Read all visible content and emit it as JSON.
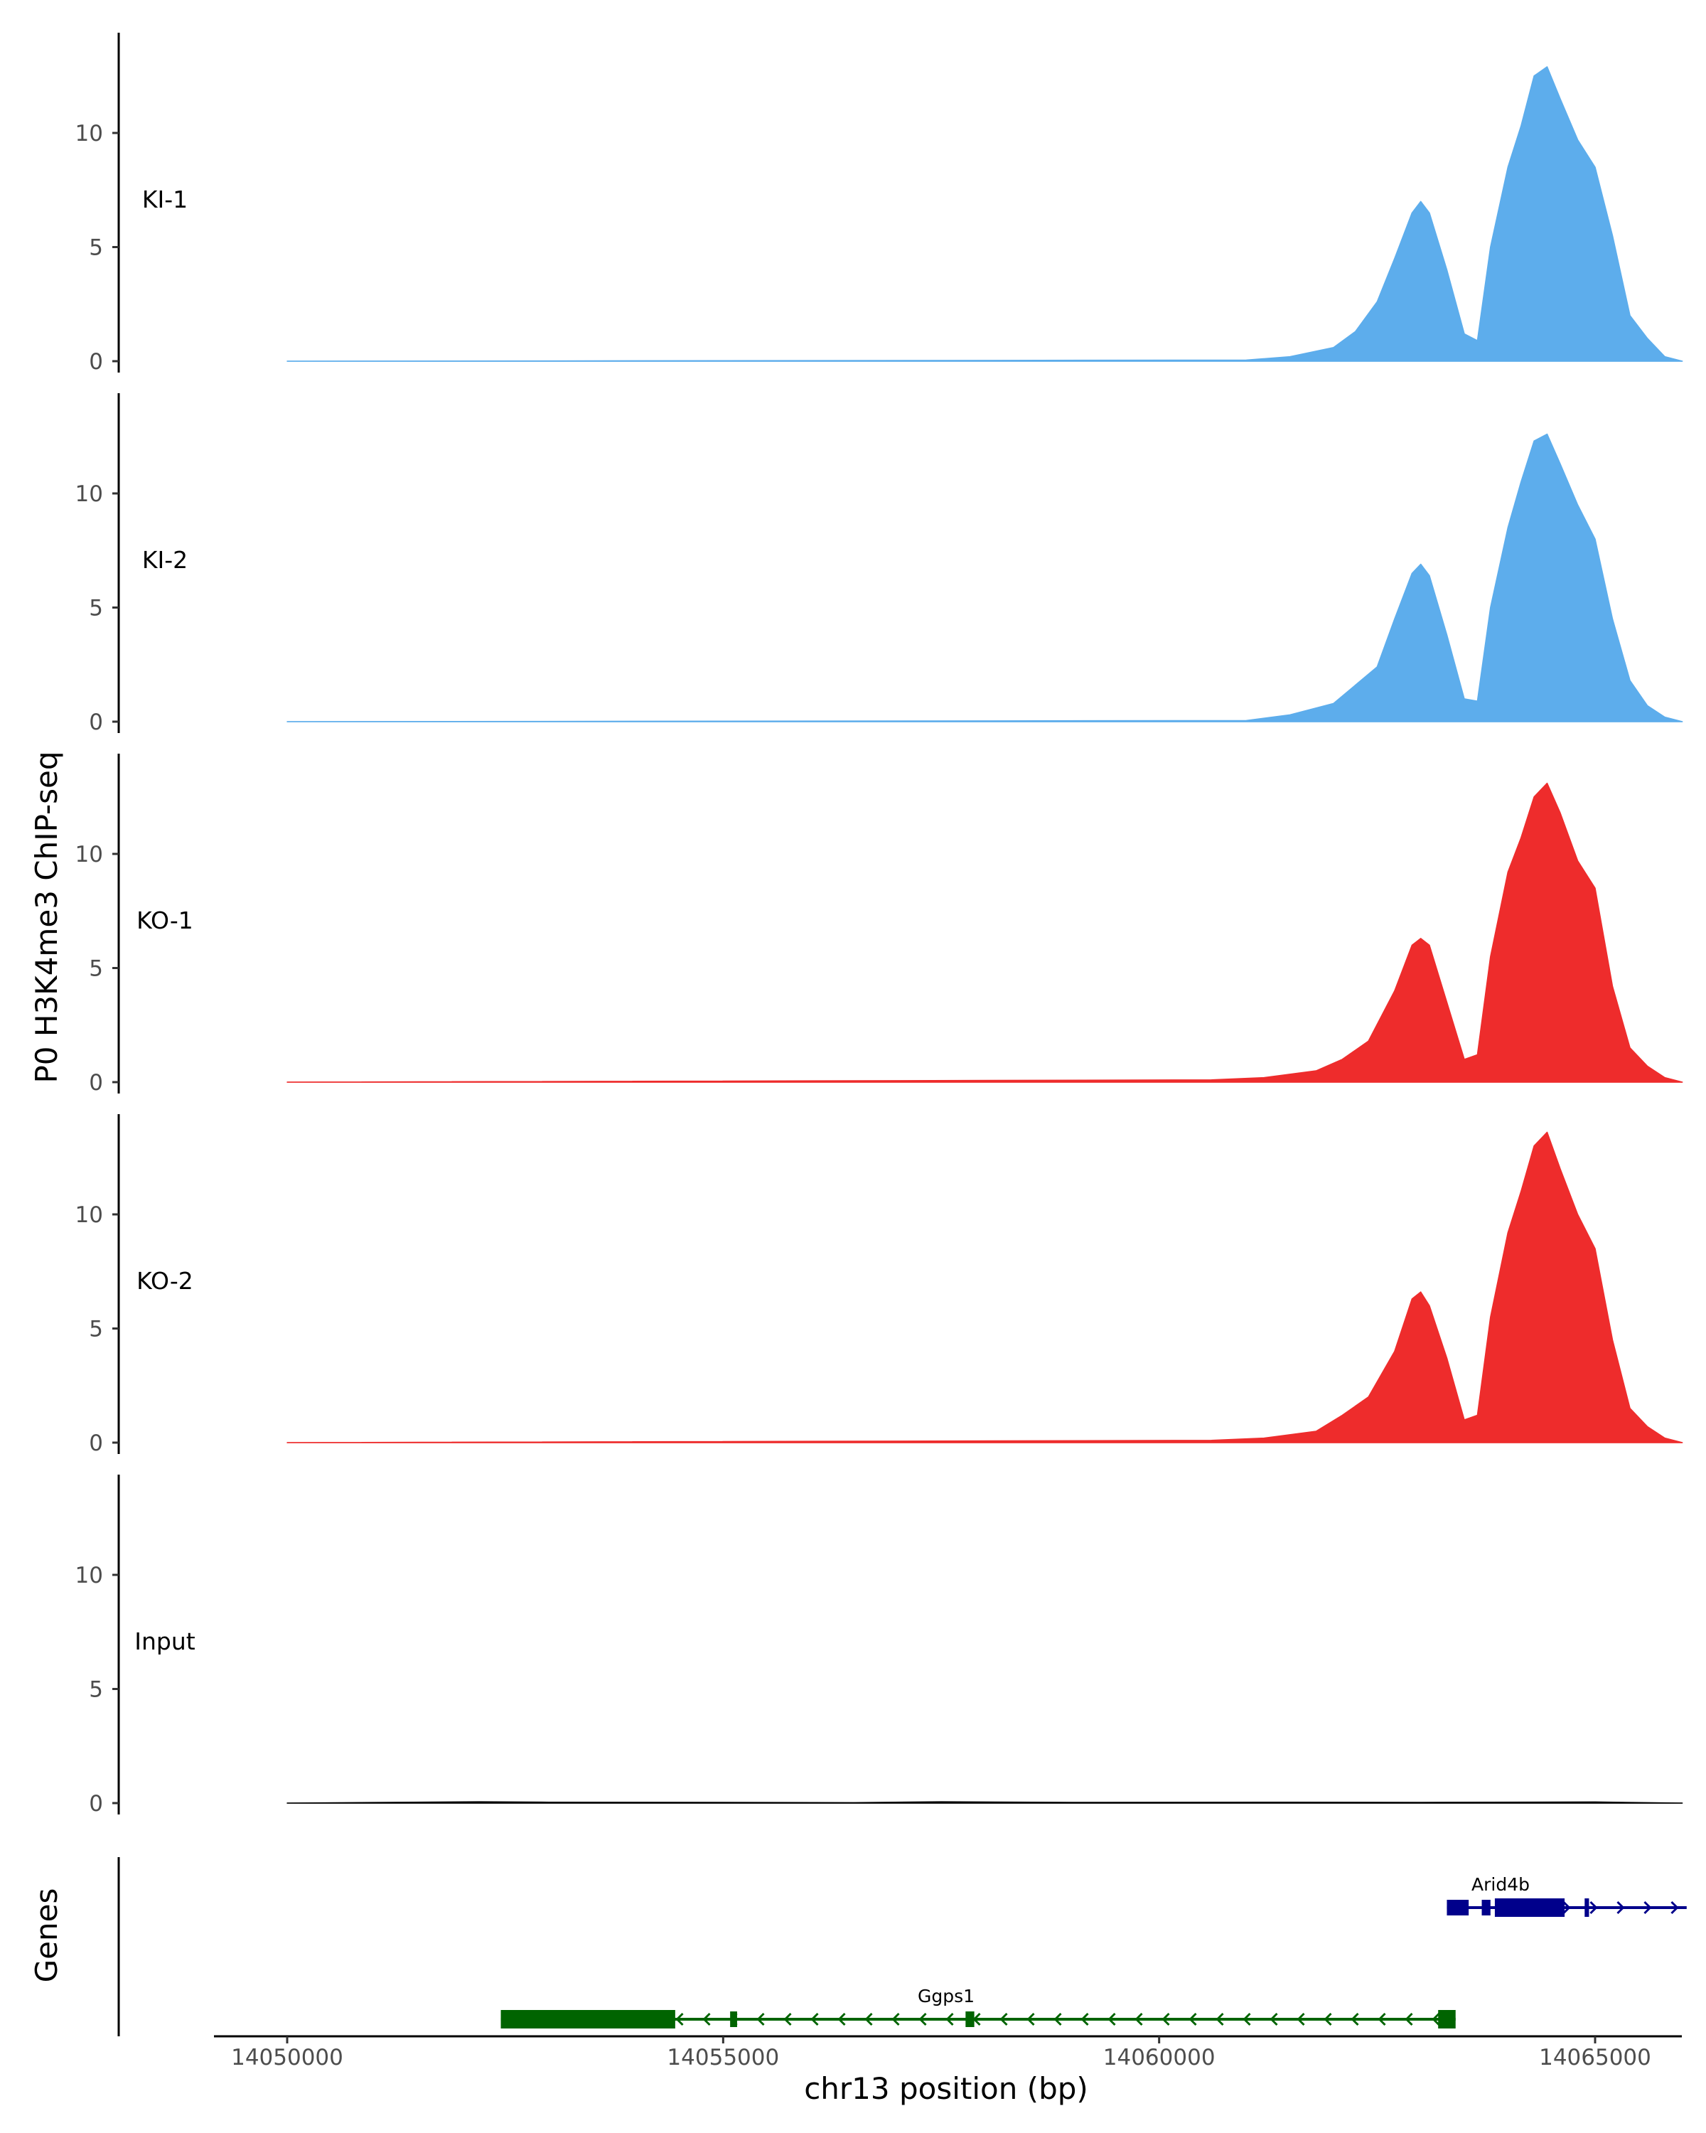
{
  "chart_data": {
    "type": "area",
    "title": "",
    "ylabel": "P0 H3K4me3 ChIP-seq",
    "xlabel": "chr13 position (bp)",
    "xlim": [
      14049000,
      14066800
    ],
    "ylim": [
      0,
      14.2
    ],
    "x_ticks": [
      14050000,
      14055000,
      14060000,
      14065000
    ],
    "x_tick_labels": [
      "14050000",
      "14055000",
      "14060000",
      "14065000"
    ],
    "y_ticks": [
      0,
      5,
      10
    ],
    "y_tick_labels": [
      "0",
      "5",
      "10"
    ],
    "tracks": [
      {
        "name": "KI-1",
        "color": "#5DADEC",
        "x": [
          14050000,
          14061000,
          14061500,
          14062000,
          14062250,
          14062500,
          14062700,
          14062900,
          14063000,
          14063100,
          14063300,
          14063500,
          14063650,
          14063800,
          14064000,
          14064150,
          14064300,
          14064450,
          14064600,
          14064800,
          14065000,
          14065200,
          14065400,
          14065600,
          14065800,
          14066000
        ],
        "values": [
          0,
          0.05,
          0.2,
          0.6,
          1.3,
          2.6,
          4.5,
          6.5,
          7.0,
          6.5,
          4.0,
          1.2,
          0.9,
          5.0,
          8.5,
          10.3,
          12.5,
          12.9,
          11.5,
          9.7,
          8.5,
          5.5,
          2.0,
          1.0,
          0.2,
          0
        ]
      },
      {
        "name": "KI-2",
        "color": "#5DADEC",
        "x": [
          14050000,
          14061000,
          14061500,
          14062000,
          14062250,
          14062500,
          14062700,
          14062900,
          14063000,
          14063100,
          14063300,
          14063500,
          14063650,
          14063800,
          14064000,
          14064150,
          14064300,
          14064450,
          14064600,
          14064800,
          14065000,
          14065200,
          14065400,
          14065600,
          14065800,
          14066000
        ],
        "values": [
          0,
          0.05,
          0.3,
          0.8,
          1.6,
          2.4,
          4.5,
          6.5,
          6.9,
          6.4,
          3.8,
          1.0,
          0.9,
          5.0,
          8.5,
          10.5,
          12.3,
          12.6,
          11.3,
          9.5,
          8.0,
          4.5,
          1.8,
          0.7,
          0.2,
          0
        ]
      },
      {
        "name": "KO-1",
        "color": "#EE2C2C",
        "x": [
          14050000,
          14060600,
          14061200,
          14061800,
          14062100,
          14062400,
          14062700,
          14062900,
          14063000,
          14063100,
          14063300,
          14063500,
          14063650,
          14063800,
          14064000,
          14064150,
          14064300,
          14064450,
          14064600,
          14064800,
          14065000,
          14065200,
          14065400,
          14065600,
          14065800,
          14066000
        ],
        "values": [
          0,
          0.1,
          0.2,
          0.5,
          1.0,
          1.8,
          4.0,
          6.0,
          6.3,
          6.0,
          3.5,
          1.0,
          1.2,
          5.5,
          9.2,
          10.7,
          12.5,
          13.1,
          11.8,
          9.7,
          8.5,
          4.2,
          1.5,
          0.7,
          0.2,
          0
        ]
      },
      {
        "name": "KO-2",
        "color": "#EE2C2C",
        "x": [
          14050000,
          14060600,
          14061200,
          14061800,
          14062100,
          14062400,
          14062700,
          14062900,
          14063000,
          14063100,
          14063300,
          14063500,
          14063650,
          14063800,
          14064000,
          14064150,
          14064300,
          14064450,
          14064600,
          14064800,
          14065000,
          14065200,
          14065400,
          14065600,
          14065800,
          14066000
        ],
        "values": [
          0,
          0.1,
          0.2,
          0.5,
          1.2,
          2.0,
          4.0,
          6.3,
          6.6,
          6.0,
          3.7,
          1.0,
          1.2,
          5.5,
          9.2,
          11.0,
          13.0,
          13.6,
          12.0,
          10.0,
          8.5,
          4.5,
          1.5,
          0.7,
          0.2,
          0
        ]
      },
      {
        "name": "Input",
        "color": "#000000",
        "x": [
          14050000,
          14052200,
          14053000,
          14055000,
          14056500,
          14057500,
          14059000,
          14061500,
          14063000,
          14065000,
          14066000
        ],
        "values": [
          0,
          0.06,
          0.04,
          0.03,
          0.02,
          0.06,
          0.03,
          0.04,
          0.03,
          0.05,
          0
        ]
      }
    ],
    "genes_track_label": "Genes",
    "genes": [
      {
        "name": "Arid4b",
        "strand": "+",
        "color": "#00008B",
        "start": 14063300,
        "end": 14066050,
        "exons": [
          [
            14063300,
            14063550,
            "utr"
          ],
          [
            14063700,
            14063800,
            "utr"
          ],
          [
            14063850,
            14064650,
            "cds"
          ],
          [
            14064880,
            14064930,
            "cds"
          ]
        ]
      },
      {
        "name": "Ggps1",
        "strand": "-",
        "color": "#006400",
        "start": 14052450,
        "end": 14063400,
        "exons": [
          [
            14052450,
            14054450,
            "cds"
          ],
          [
            14055080,
            14055160,
            "utr"
          ],
          [
            14057780,
            14057880,
            "utr"
          ],
          [
            14063200,
            14063400,
            "cds"
          ]
        ]
      }
    ]
  }
}
